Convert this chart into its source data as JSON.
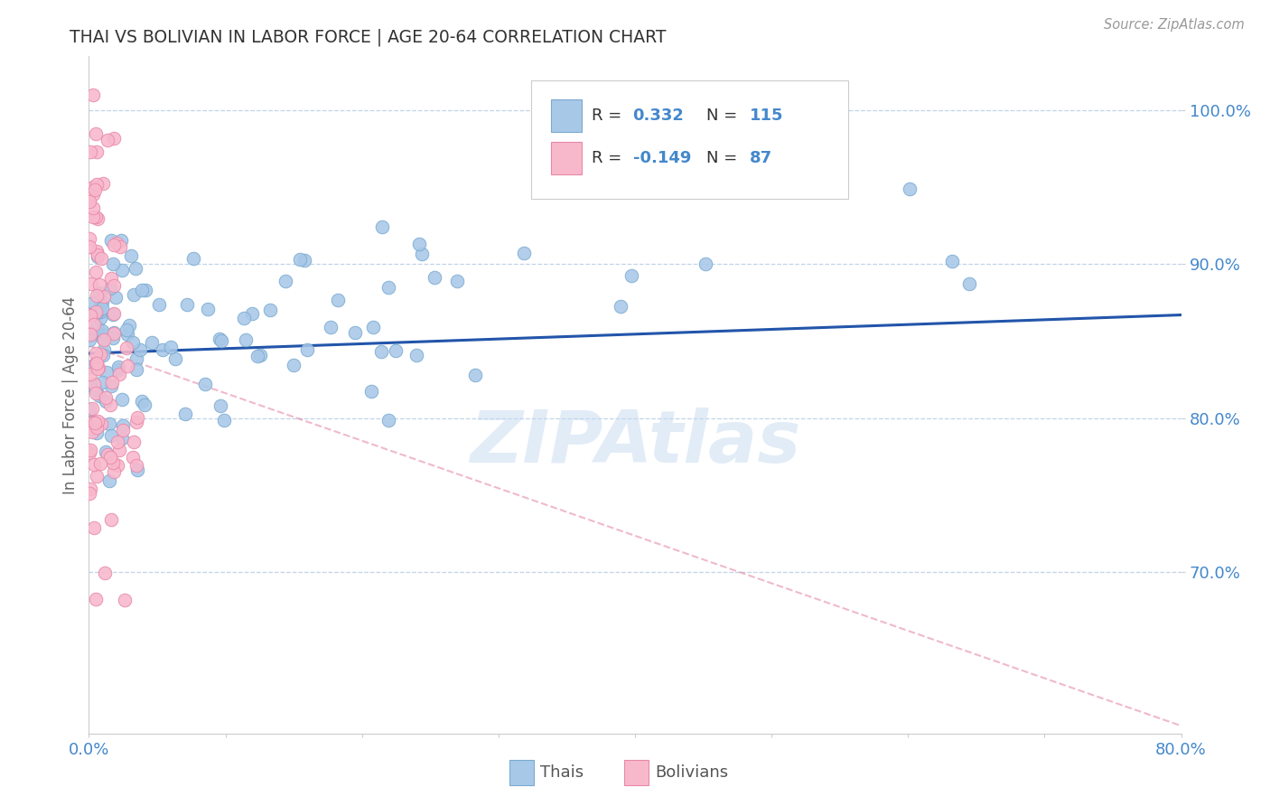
{
  "title": "THAI VS BOLIVIAN IN LABOR FORCE | AGE 20-64 CORRELATION CHART",
  "source": "Source: ZipAtlas.com",
  "ylabel": "In Labor Force | Age 20-64",
  "yticks": [
    "100.0%",
    "90.0%",
    "80.0%",
    "70.0%"
  ],
  "ytick_values": [
    1.0,
    0.9,
    0.8,
    0.7
  ],
  "thai_R": 0.332,
  "thai_N": 115,
  "bolivian_R": -0.149,
  "bolivian_N": 87,
  "thai_color": "#a8c8e8",
  "thai_edge": "#7aaad0",
  "bolivian_color": "#f8b8cc",
  "bolivian_edge": "#e888a8",
  "trend_thai_color": "#2255aa",
  "trend_bolivian_color": "#dd6688",
  "watermark": "ZIPAtlas",
  "background_color": "#ffffff",
  "xlim": [
    0.0,
    0.8
  ],
  "ylim": [
    0.595,
    1.035
  ]
}
